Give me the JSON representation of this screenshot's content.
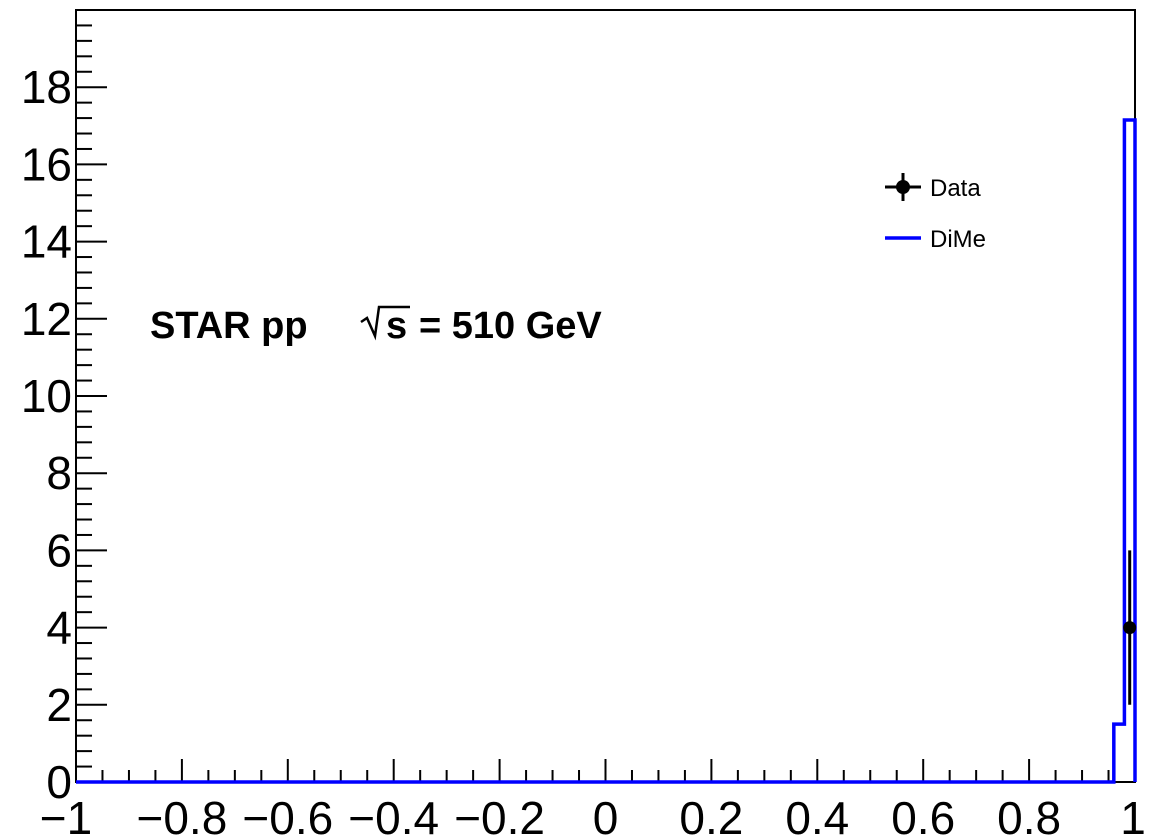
{
  "chart_data": {
    "type": "line",
    "title": "",
    "xlabel": "",
    "ylabel": "",
    "xlim": [
      -1,
      1
    ],
    "ylim": [
      0,
      20
    ],
    "grid": false,
    "legend_position": "top-right",
    "x_ticks": [
      -1,
      -0.8,
      -0.6,
      -0.4,
      -0.2,
      0,
      0.2,
      0.4,
      0.6,
      0.8,
      1
    ],
    "x_tick_labels": [
      "−1",
      "−0.8",
      "−0.6",
      "−0.4",
      "−0.2",
      "0",
      "0.2",
      "0.4",
      "0.6",
      "0.8",
      "1"
    ],
    "y_ticks": [
      0,
      2,
      4,
      6,
      8,
      10,
      12,
      14,
      16,
      18
    ],
    "y_tick_labels": [
      "0",
      "2",
      "4",
      "6",
      "8",
      "10",
      "12",
      "14",
      "16",
      "18"
    ],
    "annotation": {
      "prefix": "STAR pp",
      "radicand": "s",
      "suffix": "= 510 GeV"
    },
    "series": [
      {
        "name": "Data",
        "kind": "points-with-errors",
        "color": "#000000",
        "points": [
          {
            "x": 0.99,
            "y": 4,
            "err_low": 2,
            "err_high": 2
          }
        ]
      },
      {
        "name": "DiMe",
        "kind": "step-histogram",
        "color": "#0000ff",
        "bins": [
          {
            "x_low": -1.0,
            "x_high": 0.96,
            "y": 0.0
          },
          {
            "x_low": 0.96,
            "x_high": 0.98,
            "y": 1.5
          },
          {
            "x_low": 0.98,
            "x_high": 1.0,
            "y": 17.15
          }
        ]
      }
    ]
  }
}
